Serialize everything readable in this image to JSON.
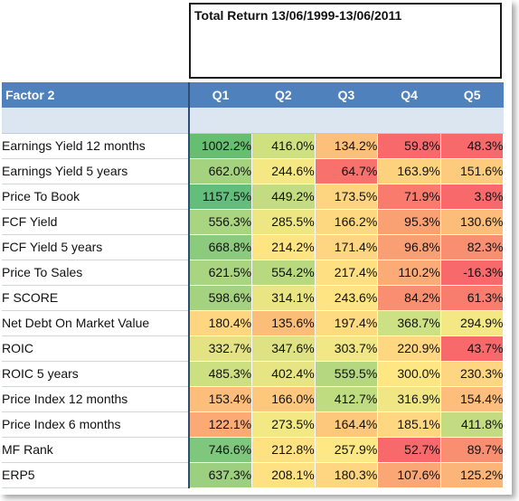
{
  "title": "Total Return 13/06/1999-13/06/2011",
  "header": {
    "factor_label": "Factor 2",
    "quintiles": [
      "Q1",
      "Q2",
      "Q3",
      "Q4",
      "Q5"
    ]
  },
  "rows": [
    {
      "factor": "Earnings Yield 12 months",
      "values": [
        "1002.2%",
        "416.0%",
        "134.2%",
        "59.8%",
        "48.3%"
      ],
      "colors": [
        "#66bf70",
        "#cfe07f",
        "#fcc07a",
        "#f8696b",
        "#f8696b"
      ]
    },
    {
      "factor": "Earnings Yield 5 years",
      "values": [
        "662.0%",
        "244.6%",
        "64.7%",
        "163.9%",
        "151.6%"
      ],
      "colors": [
        "#a5d27f",
        "#f5e884",
        "#f8716c",
        "#fdd27e",
        "#fccb7d"
      ]
    },
    {
      "factor": "Price To Book",
      "values": [
        "1157.5%",
        "449.2%",
        "173.5%",
        "71.9%",
        "3.8%"
      ],
      "colors": [
        "#63be7b",
        "#c3dc81",
        "#fdd580",
        "#f97b6e",
        "#f8696b"
      ]
    },
    {
      "factor": "FCF Yield",
      "values": [
        "556.3%",
        "285.5%",
        "166.2%",
        "95.3%",
        "130.6%"
      ],
      "colors": [
        "#a9d480",
        "#ede683",
        "#fed880",
        "#faa173",
        "#fbbd79"
      ]
    },
    {
      "factor": "FCF Yield 5 years",
      "values": [
        "668.8%",
        "214.2%",
        "171.4%",
        "96.8%",
        "82.3%"
      ],
      "colors": [
        "#8ccb7d",
        "#fee582",
        "#fed580",
        "#fa9e73",
        "#f98f70"
      ]
    },
    {
      "factor": "Price To Sales",
      "values": [
        "621.5%",
        "554.2%",
        "217.4%",
        "110.2%",
        "-16.3%"
      ],
      "colors": [
        "#a9d480",
        "#b8d980",
        "#fee082",
        "#fbac76",
        "#f8696b"
      ]
    },
    {
      "factor": "F SCORE",
      "values": [
        "598.6%",
        "314.1%",
        "243.6%",
        "84.2%",
        "61.3%"
      ],
      "colors": [
        "#a4d27f",
        "#eae583",
        "#fee482",
        "#f98f70",
        "#f97d6e"
      ]
    },
    {
      "factor": "Net Debt On Market Value",
      "values": [
        "180.4%",
        "135.6%",
        "197.4%",
        "368.7%",
        "294.9%"
      ],
      "colors": [
        "#fed580",
        "#fcbd79",
        "#fedb81",
        "#cce084",
        "#f3e884"
      ]
    },
    {
      "factor": "ROIC",
      "values": [
        "332.7%",
        "347.6%",
        "303.7%",
        "220.9%",
        "43.7%"
      ],
      "colors": [
        "#e4e383",
        "#dfe283",
        "#f1e784",
        "#fed780",
        "#f8696b"
      ]
    },
    {
      "factor": "ROIC 5 years",
      "values": [
        "485.3%",
        "402.4%",
        "559.5%",
        "300.0%",
        "230.3%"
      ],
      "colors": [
        "#cde081",
        "#e6e483",
        "#b4d780",
        "#fee783",
        "#fed580"
      ]
    },
    {
      "factor": "Price Index 12 months",
      "values": [
        "153.4%",
        "166.0%",
        "412.7%",
        "316.9%",
        "154.4%"
      ],
      "colors": [
        "#fcbe7a",
        "#fdc87c",
        "#c0dc81",
        "#f0e784",
        "#fcbe7a"
      ]
    },
    {
      "factor": "Price Index 6 months",
      "values": [
        "122.1%",
        "273.5%",
        "164.4%",
        "185.1%",
        "411.8%"
      ],
      "colors": [
        "#fbaa76",
        "#f2e884",
        "#fdc87c",
        "#fed780",
        "#c3dc81"
      ]
    },
    {
      "factor": "MF Rank",
      "values": [
        "746.6%",
        "212.8%",
        "257.9%",
        "52.7%",
        "89.7%"
      ],
      "colors": [
        "#7fc77d",
        "#fee282",
        "#fee883",
        "#f8696b",
        "#f98e70"
      ]
    },
    {
      "factor": "ERP5",
      "values": [
        "637.3%",
        "208.1%",
        "180.3%",
        "107.6%",
        "125.2%"
      ],
      "colors": [
        "#9ccf7f",
        "#fee182",
        "#fed580",
        "#fba775",
        "#fcb579"
      ]
    }
  ]
}
